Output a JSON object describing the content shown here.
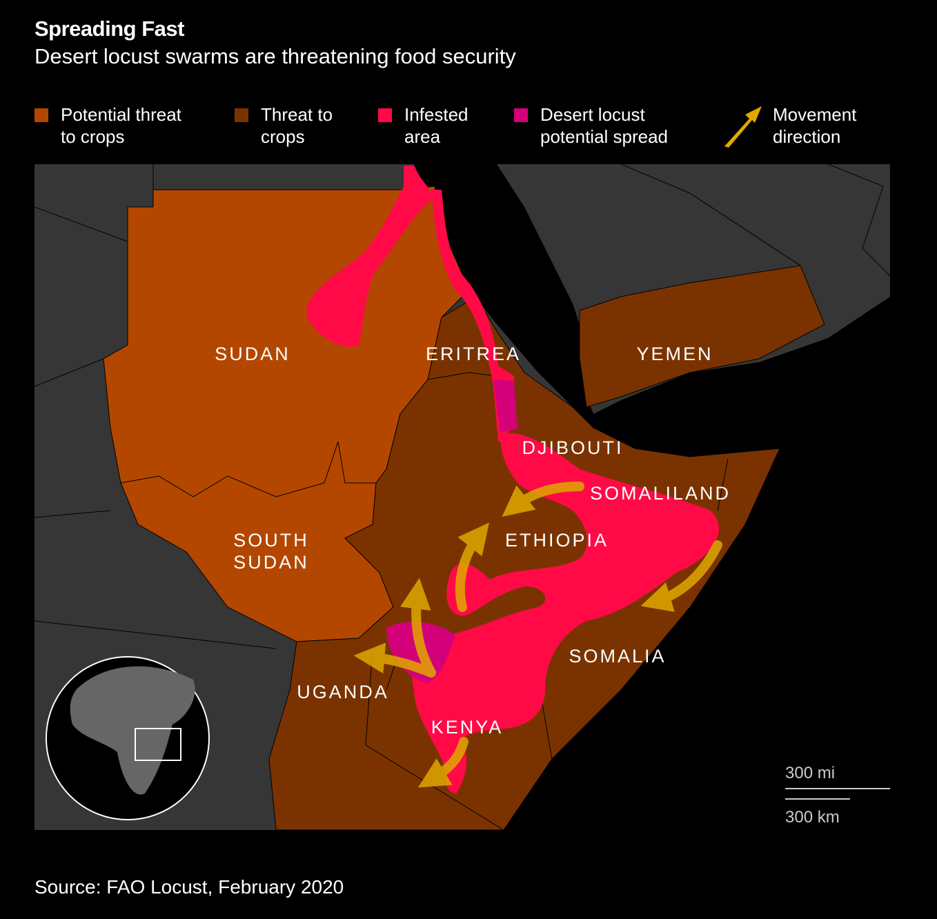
{
  "header": {
    "title": "Spreading Fast",
    "subtitle": "Desert locust swarms are threatening food security"
  },
  "legend": [
    {
      "lines": [
        "Potential threat",
        "to crops"
      ],
      "color": "#b34700"
    },
    {
      "lines": [
        "Threat to",
        "crops"
      ],
      "color": "#7a3300"
    },
    {
      "lines": [
        "Infested",
        "area"
      ],
      "color": "#ff0a47"
    },
    {
      "lines": [
        "Desert locust",
        "potential spread"
      ],
      "color": "#d4007a"
    },
    {
      "lines": [
        "Movement",
        "direction"
      ],
      "color": "#e0a800"
    }
  ],
  "labels": [
    {
      "lines": [
        "SUDAN"
      ]
    },
    {
      "lines": [
        "ERITREA"
      ]
    },
    {
      "lines": [
        "YEMEN"
      ]
    },
    {
      "lines": [
        "DJIBOUTI"
      ]
    },
    {
      "lines": [
        "SOMALILAND"
      ]
    },
    {
      "lines": [
        "ETHIOPIA"
      ]
    },
    {
      "lines": [
        "SOUTH",
        "SUDAN"
      ]
    },
    {
      "lines": [
        "SOMALIA"
      ]
    },
    {
      "lines": [
        "UGANDA"
      ]
    },
    {
      "lines": [
        "KENYA"
      ]
    }
  ],
  "scale": {
    "miles": "300 mi",
    "km": "300 km"
  },
  "source": "Source: FAO Locust, February 2020"
}
